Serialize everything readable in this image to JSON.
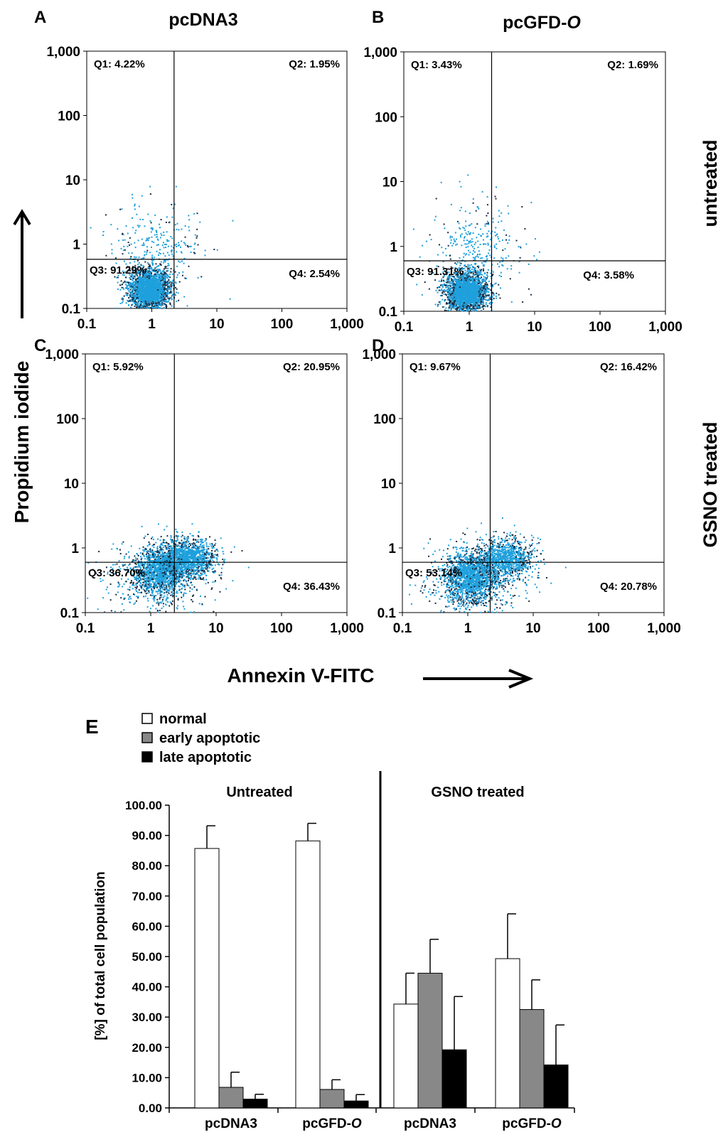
{
  "chart_data": [
    {
      "type": "scatter",
      "panel": "A",
      "column_title": "pcDNA3",
      "row_title": "untreated",
      "xlabel": "Annexin V-FITC",
      "ylabel": "Propidium iodide",
      "x_scale": "log",
      "y_scale": "log",
      "xlim": [
        0.1,
        1000
      ],
      "ylim": [
        0.1,
        1000
      ],
      "x_ticks": [
        "0.1",
        "1",
        "10",
        "100",
        "1,000"
      ],
      "y_ticks": [
        "0.1",
        "1",
        "10",
        "100",
        "1,000"
      ],
      "gate": {
        "x": 2.2,
        "y": 0.58
      },
      "quadrants": {
        "Q1": "Q1: 4.22%",
        "Q2": "Q2: 1.95%",
        "Q3": "Q3: 91.29%",
        "Q4": "Q4: 2.54%"
      },
      "clusters": [
        {
          "cx": 0.9,
          "cy": 0.2,
          "sx": 0.16,
          "sy": 0.16,
          "n": 2300
        },
        {
          "cx": 1.2,
          "cy": 0.9,
          "sx": 0.35,
          "sy": 0.35,
          "n": 300
        }
      ]
    },
    {
      "type": "scatter",
      "panel": "B",
      "column_title": "pcGFD-O",
      "row_title": "untreated",
      "xlabel": "Annexin V-FITC",
      "ylabel": "Propidium iodide",
      "x_scale": "log",
      "y_scale": "log",
      "xlim": [
        0.1,
        1000
      ],
      "ylim": [
        0.1,
        1000
      ],
      "x_ticks": [
        "0.1",
        "1",
        "10",
        "100",
        "1,000"
      ],
      "y_ticks": [
        "0.1",
        "1",
        "10",
        "100",
        "1,000"
      ],
      "gate": {
        "x": 2.2,
        "y": 0.6
      },
      "quadrants": {
        "Q1": "Q1: 3.43%",
        "Q2": "Q2: 1.69%",
        "Q3": "Q3: 91.31%",
        "Q4": "Q4: 3.58%"
      },
      "clusters": [
        {
          "cx": 0.9,
          "cy": 0.2,
          "sx": 0.16,
          "sy": 0.16,
          "n": 2300
        },
        {
          "cx": 1.3,
          "cy": 0.9,
          "sx": 0.35,
          "sy": 0.35,
          "n": 320
        }
      ]
    },
    {
      "type": "scatter",
      "panel": "C",
      "column_title": "pcDNA3",
      "row_title": "GSNO treated",
      "xlabel": "Annexin V-FITC",
      "ylabel": "Propidium iodide",
      "x_scale": "log",
      "y_scale": "log",
      "xlim": [
        0.1,
        1000
      ],
      "ylim": [
        0.1,
        1000
      ],
      "x_ticks": [
        "0.1",
        "1",
        "10",
        "100",
        "1,000"
      ],
      "y_ticks": [
        "0.1",
        "1",
        "10",
        "100",
        "1,000"
      ],
      "gate": {
        "x": 2.3,
        "y": 0.6
      },
      "quadrants": {
        "Q1": "Q1: 5.92%",
        "Q2": "Q2: 20.95%",
        "Q3": "Q3: 36.70%",
        "Q4": "Q4: 36.43%"
      },
      "clusters": [
        {
          "cx": 1.3,
          "cy": 0.45,
          "sx": 0.2,
          "sy": 0.18,
          "n": 1300
        },
        {
          "cx": 3.5,
          "cy": 0.7,
          "sx": 0.22,
          "sy": 0.15,
          "n": 1300
        },
        {
          "cx": 1.2,
          "cy": 0.3,
          "sx": 0.45,
          "sy": 0.35,
          "n": 400
        }
      ]
    },
    {
      "type": "scatter",
      "panel": "D",
      "column_title": "pcGFD-O",
      "row_title": "GSNO treated",
      "xlabel": "Annexin V-FITC",
      "ylabel": "Propidium iodide",
      "x_scale": "log",
      "y_scale": "log",
      "xlim": [
        0.1,
        1000
      ],
      "ylim": [
        0.1,
        1000
      ],
      "x_ticks": [
        "0.1",
        "1",
        "10",
        "100",
        "1,000"
      ],
      "y_ticks": [
        "0.1",
        "1",
        "10",
        "100",
        "1,000"
      ],
      "gate": {
        "x": 2.2,
        "y": 0.6
      },
      "quadrants": {
        "Q1": "Q1: 9.67%",
        "Q2": "Q2: 16.42%",
        "Q3": "Q3: 53.14%",
        "Q4": "Q4: 20.78%"
      },
      "clusters": [
        {
          "cx": 1.1,
          "cy": 0.35,
          "sx": 0.2,
          "sy": 0.2,
          "n": 1500
        },
        {
          "cx": 3.5,
          "cy": 0.7,
          "sx": 0.22,
          "sy": 0.15,
          "n": 1000
        },
        {
          "cx": 1.2,
          "cy": 0.3,
          "sx": 0.45,
          "sy": 0.35,
          "n": 400
        }
      ]
    },
    {
      "type": "bar",
      "panel": "E",
      "ylabel": "[%] of total cell population",
      "ylim": [
        0,
        100
      ],
      "y_ticks": [
        "0.00",
        "10.00",
        "20.00",
        "30.00",
        "40.00",
        "50.00",
        "60.00",
        "70.00",
        "80.00",
        "90.00",
        "100.00"
      ],
      "legend": [
        "normal",
        "early apoptotic",
        "late apoptotic"
      ],
      "legend_colors": [
        "#ffffff",
        "#888888",
        "#000000"
      ],
      "groups": [
        {
          "title": "Untreated",
          "categories": [
            "pcDNA3",
            "pcGFD-O"
          ]
        },
        {
          "title": "GSNO treated",
          "categories": [
            "pcDNA3",
            "pcGFD-O"
          ]
        }
      ],
      "categories": [
        "pcDNA3",
        "pcGFD-O",
        "pcDNA3",
        "pcGFD-O"
      ],
      "series": [
        {
          "name": "normal",
          "values": [
            85.7,
            88.2,
            34.3,
            49.3
          ],
          "errors": [
            7.5,
            5.8,
            10.2,
            14.8
          ]
        },
        {
          "name": "early apoptotic",
          "values": [
            6.8,
            6.1,
            44.5,
            32.5
          ],
          "errors": [
            5.0,
            3.2,
            11.2,
            9.8
          ]
        },
        {
          "name": "late apoptotic",
          "values": [
            2.9,
            2.3,
            19.2,
            14.2
          ],
          "errors": [
            1.6,
            2.1,
            17.6,
            13.2
          ]
        }
      ]
    }
  ],
  "figure": {
    "panel_letters": [
      "A",
      "B",
      "C",
      "D",
      "E"
    ],
    "col_titles": [
      "pcDNA3",
      "pcGFD-"
    ],
    "col_title_italic": "O",
    "row_titles": [
      "untreated",
      "GSNO treated"
    ],
    "y_axis_label": "Propidium iodide",
    "x_axis_label": "Annexin V-FITC",
    "dot_color": "#1ea0dc"
  }
}
